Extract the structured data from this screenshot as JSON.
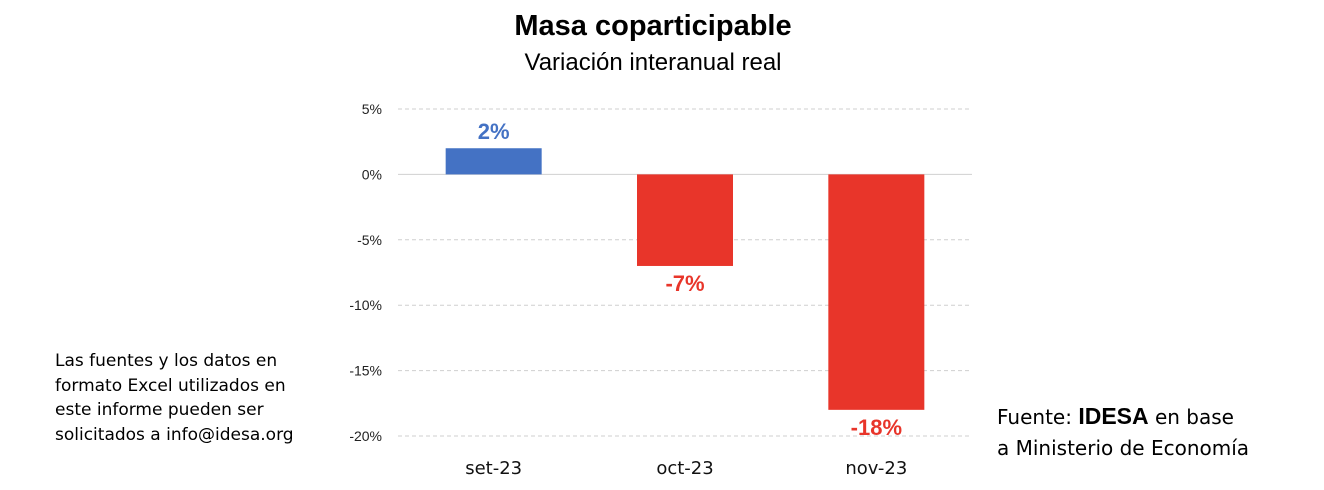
{
  "chart_data": {
    "type": "bar",
    "title": "Masa coparticipable",
    "subtitle": "Variación interanual real",
    "categories": [
      "set-23",
      "oct-23",
      "nov-23"
    ],
    "values": [
      2,
      -7,
      -18
    ],
    "data_labels": [
      "2%",
      "-7%",
      "-18%"
    ],
    "bar_colors": [
      "#4472c4",
      "#e8352a",
      "#e8352a"
    ],
    "positive_label_color": "#4472c4",
    "negative_label_color": "#e8352a",
    "ylim": [
      -20,
      5
    ],
    "yticks": [
      5,
      0,
      -5,
      -10,
      -15,
      -20
    ],
    "ytick_labels": [
      "5%",
      "0%",
      "-5%",
      "-10%",
      "-15%",
      "-20%"
    ],
    "xlabel": "",
    "ylabel": "",
    "grid": true
  },
  "note": {
    "lines": [
      "Las fuentes y los datos en",
      "formato Excel utilizados en",
      "este informe pueden ser",
      "solicitados a info@idesa.org"
    ]
  },
  "source": {
    "prefix": "Fuente: ",
    "brand": "IDESA",
    "suffix": " en base",
    "line2": "a Ministerio de Economía"
  }
}
